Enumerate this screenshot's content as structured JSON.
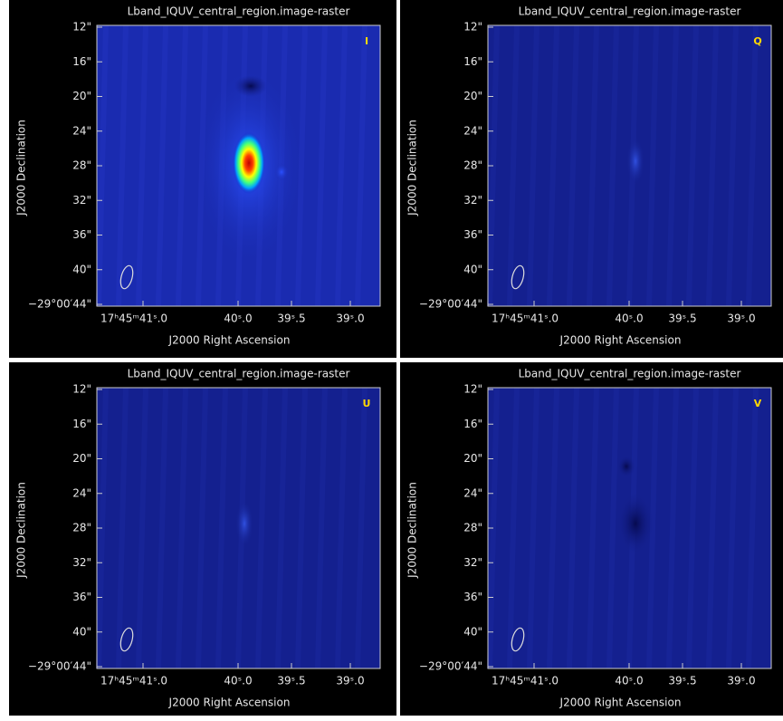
{
  "panels": [
    {
      "title": "Lband_IQUV_central_region.image-raster",
      "stokes": "I",
      "y_label": "J2000 Declination",
      "x_label": "J2000 Right Ascension",
      "y_ticks": [
        "12\"",
        "16\"",
        "20\"",
        "24\"",
        "28\"",
        "32\"",
        "36\"",
        "40\"",
        "−29°00′44\""
      ],
      "x_ticks": [
        "17ʰ45ᵐ41ˢ.0",
        "40ˢ.0",
        "39ˢ.5",
        "39ˢ.0"
      ]
    },
    {
      "title": "Lband_IQUV_central_region.image-raster",
      "stokes": "Q",
      "y_label": "J2000 Declination",
      "x_label": "J2000 Right Ascension",
      "y_ticks": [
        "12\"",
        "16\"",
        "20\"",
        "24\"",
        "28\"",
        "32\"",
        "36\"",
        "40\"",
        "−29°00′44\""
      ],
      "x_ticks": [
        "17ʰ45ᵐ41ˢ.0",
        "40ˢ.0",
        "39ˢ.5",
        "39ˢ.0"
      ]
    },
    {
      "title": "Lband_IQUV_central_region.image-raster",
      "stokes": "U",
      "y_label": "J2000 Declination",
      "x_label": "J2000 Right Ascension",
      "y_ticks": [
        "12\"",
        "16\"",
        "20\"",
        "24\"",
        "28\"",
        "32\"",
        "36\"",
        "40\"",
        "−29°00′44\""
      ],
      "x_ticks": [
        "17ʰ45ᵐ41ˢ.0",
        "40ˢ.0",
        "39ˢ.5",
        "39ˢ.0"
      ]
    },
    {
      "title": "Lband_IQUV_central_region.image-raster",
      "stokes": "V",
      "y_label": "J2000 Declination",
      "x_label": "J2000 Right Ascension",
      "y_ticks": [
        "12\"",
        "16\"",
        "20\"",
        "24\"",
        "28\"",
        "32\"",
        "36\"",
        "40\"",
        "−29°00′44\""
      ],
      "x_ticks": [
        "17ʰ45ᵐ41ˢ.0",
        "40ˢ.0",
        "39ˢ.5",
        "39ˢ.0"
      ]
    }
  ]
}
